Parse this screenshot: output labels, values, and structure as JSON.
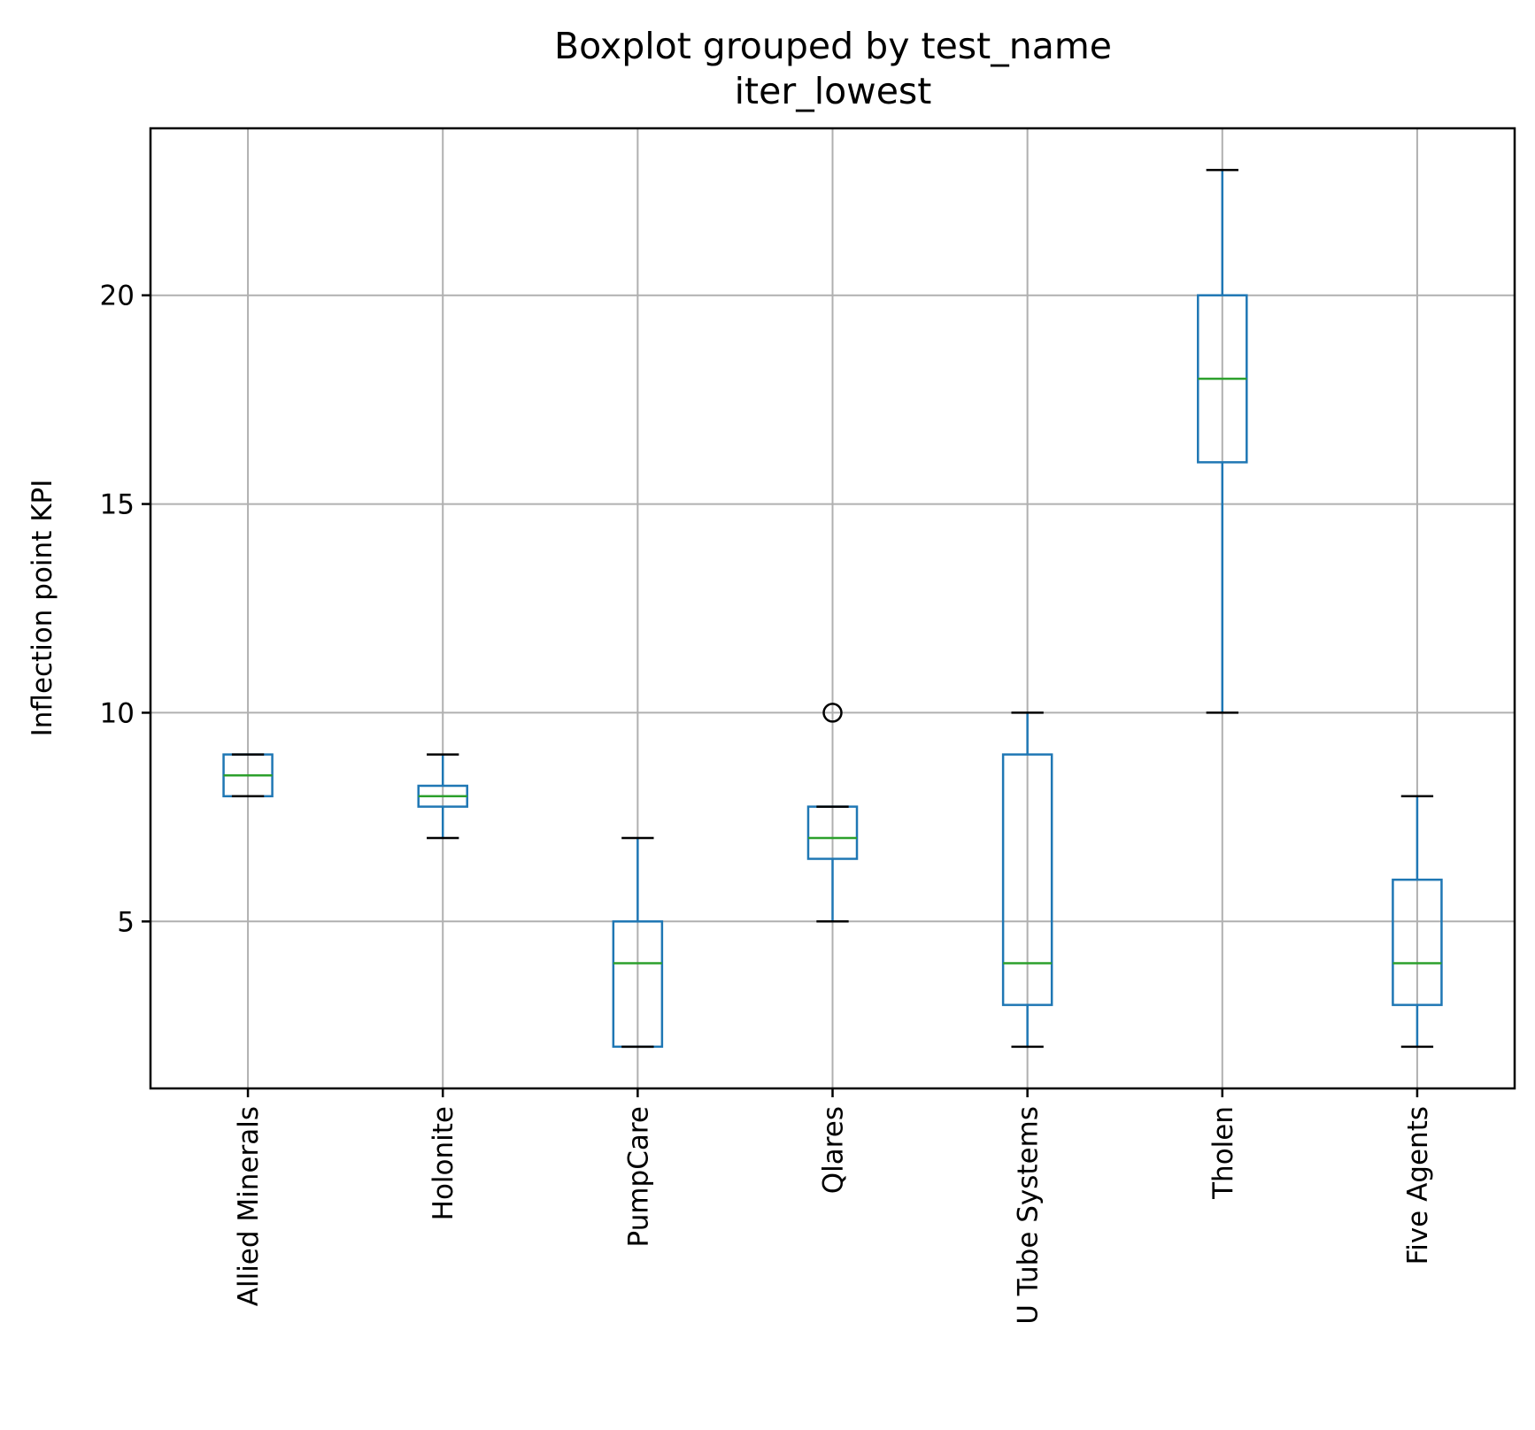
{
  "chart_data": {
    "type": "boxplot",
    "title": "Boxplot grouped by test_name",
    "subtitle": "iter_lowest",
    "xlabel": "",
    "ylabel": "Inflection point KPI",
    "ylim": [
      1,
      24
    ],
    "yticks": [
      5,
      10,
      15,
      20
    ],
    "grid": true,
    "categories": [
      "Allied Minerals",
      "Holonite",
      "PumpCare",
      "Qlares",
      "U Tube Systems",
      "Tholen",
      "Five Agents"
    ],
    "boxes": [
      {
        "whisker_low": 8,
        "q1": 8,
        "median": 8.5,
        "q3": 9,
        "whisker_high": 9,
        "outliers": []
      },
      {
        "whisker_low": 7,
        "q1": 7.75,
        "median": 8,
        "q3": 8.25,
        "whisker_high": 9,
        "outliers": []
      },
      {
        "whisker_low": 2,
        "q1": 2,
        "median": 4,
        "q3": 5,
        "whisker_high": 7,
        "outliers": []
      },
      {
        "whisker_low": 5,
        "q1": 6.5,
        "median": 7,
        "q3": 7.75,
        "whisker_high": 7.75,
        "outliers": [
          10
        ]
      },
      {
        "whisker_low": 2,
        "q1": 3,
        "median": 4,
        "q3": 9,
        "whisker_high": 10,
        "outliers": []
      },
      {
        "whisker_low": 10,
        "q1": 16,
        "median": 18,
        "q3": 20,
        "whisker_high": 23,
        "outliers": []
      },
      {
        "whisker_low": 2,
        "q1": 3,
        "median": 4,
        "q3": 6,
        "whisker_high": 8,
        "outliers": []
      }
    ],
    "colors": {
      "box": "#1f77b4",
      "median": "#2ca02c",
      "cap": "#000000",
      "outlier": "#000000",
      "grid": "#b0b0b0"
    }
  }
}
